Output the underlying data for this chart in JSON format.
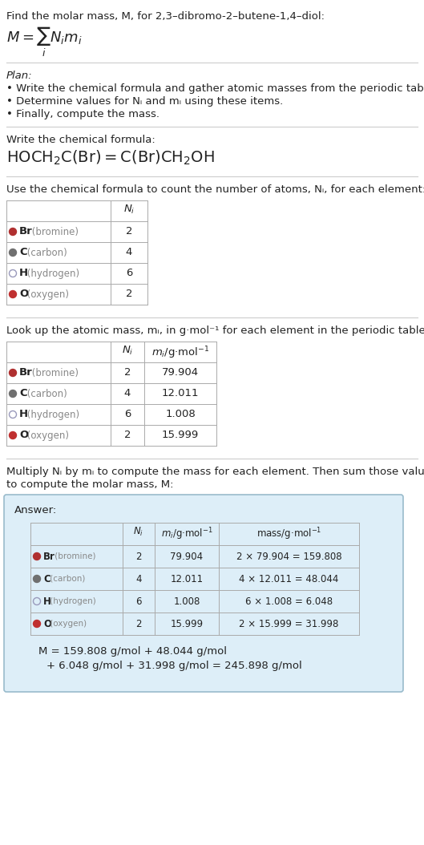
{
  "title_line": "Find the molar mass, M, for 2,3–dibromo-2–butene-1,4–diol:",
  "plan_header": "Plan:",
  "plan_bullets": [
    "Write the chemical formula and gather atomic masses from the periodic table.",
    "Determine values for Nᵢ and mᵢ using these items.",
    "Finally, compute the mass."
  ],
  "chem_formula_header": "Write the chemical formula:",
  "count_header": "Use the chemical formula to count the number of atoms, Nᵢ, for each element:",
  "lookup_header": "Look up the atomic mass, mᵢ, in g·mol⁻¹ for each element in the periodic table:",
  "multiply_header_1": "Multiply Nᵢ by mᵢ to compute the mass for each element. Then sum those values",
  "multiply_header_2": "to compute the molar mass, M:",
  "elements": [
    "Br (bromine)",
    "C (carbon)",
    "H (hydrogen)",
    "O (oxygen)"
  ],
  "dot_colors": [
    "#b03030",
    "#707070",
    "none",
    "#c03030"
  ],
  "dot_edge_colors": [
    "#b03030",
    "#707070",
    "#9999bb",
    "#c03030"
  ],
  "Ni": [
    2,
    4,
    6,
    2
  ],
  "mi": [
    "79.904",
    "12.011",
    "1.008",
    "15.999"
  ],
  "mass_strs": [
    "2 × 79.904 = 159.808",
    "4 × 12.011 = 48.044",
    "6 × 1.008 = 6.048",
    "2 × 15.999 = 31.998"
  ],
  "final_eq_line1": "M = 159.808 g/mol + 48.044 g/mol",
  "final_eq_line2": "+ 6.048 g/mol + 31.998 g/mol = 245.898 g/mol",
  "answer_bg": "#ddeef8",
  "answer_border": "#99bbcc",
  "bg_color": "#ffffff",
  "text_color": "#222222",
  "gray_text": "#888888",
  "separator_color": "#cccccc",
  "fs": 9.5,
  "fs_sm": 8.5,
  "fs_tiny": 7.5
}
